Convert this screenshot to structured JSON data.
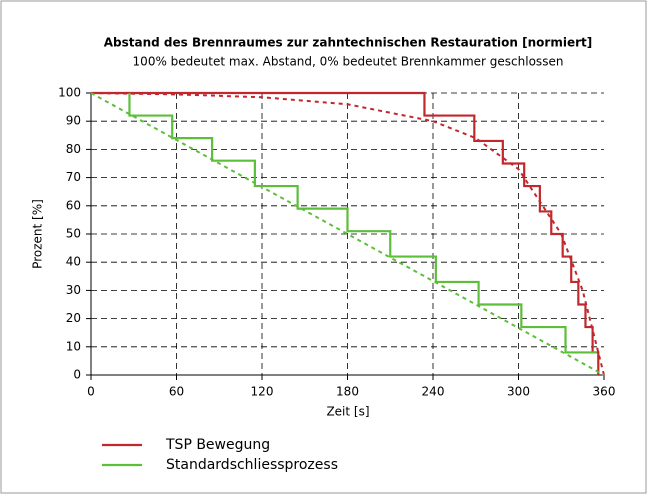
{
  "chart_data": {
    "type": "line",
    "title": "Abstand des Brennraumes zur zahntechnischen Restauration [normiert]",
    "subtitle": "100% bedeutet max. Abstand, 0% bedeutet Brennkammer geschlossen",
    "xlabel": "Zeit [s]",
    "ylabel": "Prozent [%]",
    "xlim": [
      0,
      360
    ],
    "xticks": [
      0,
      60,
      120,
      180,
      240,
      300,
      360
    ],
    "ylim": [
      0,
      100
    ],
    "yticks": [
      0,
      10,
      20,
      30,
      40,
      50,
      60,
      70,
      80,
      90,
      100
    ],
    "grid": true,
    "legend": "bottom-left",
    "series": [
      {
        "name": "TSP Bewegung",
        "color": "#c0282d",
        "x": [
          0,
          234,
          234,
          269,
          269,
          289,
          289,
          304,
          304,
          315,
          315,
          323,
          323,
          331,
          331,
          337,
          337,
          342,
          342,
          347,
          347,
          352,
          352,
          356,
          356
        ],
        "values": [
          100,
          100,
          92,
          92,
          83,
          83,
          75,
          75,
          67,
          67,
          58,
          58,
          50,
          50,
          42,
          42,
          33,
          33,
          25,
          25,
          17,
          17,
          8,
          8,
          0
        ]
      },
      {
        "name": "Standardschliessprozess",
        "color": "#5cbf3a",
        "x": [
          27,
          27,
          57,
          57,
          85,
          85,
          115,
          115,
          145,
          145,
          180,
          180,
          210,
          210,
          242,
          242,
          272,
          272,
          302,
          302,
          333,
          333,
          355
        ],
        "values": [
          100,
          92,
          92,
          84,
          84,
          76,
          76,
          67,
          67,
          59,
          59,
          51,
          51,
          42,
          42,
          33,
          33,
          25,
          25,
          17,
          17,
          8,
          8
        ]
      },
      {
        "color": "#c0282d",
        "dashed": true,
        "x": [
          0,
          60,
          120,
          180,
          240,
          270,
          300,
          330,
          345,
          360
        ],
        "values": [
          100,
          99.5,
          98.5,
          96,
          90,
          84,
          73,
          50,
          30,
          0
        ]
      },
      {
        "color": "#5cbf3a",
        "dashed": true,
        "x": [
          0,
          360
        ],
        "values": [
          100,
          0
        ]
      }
    ]
  }
}
